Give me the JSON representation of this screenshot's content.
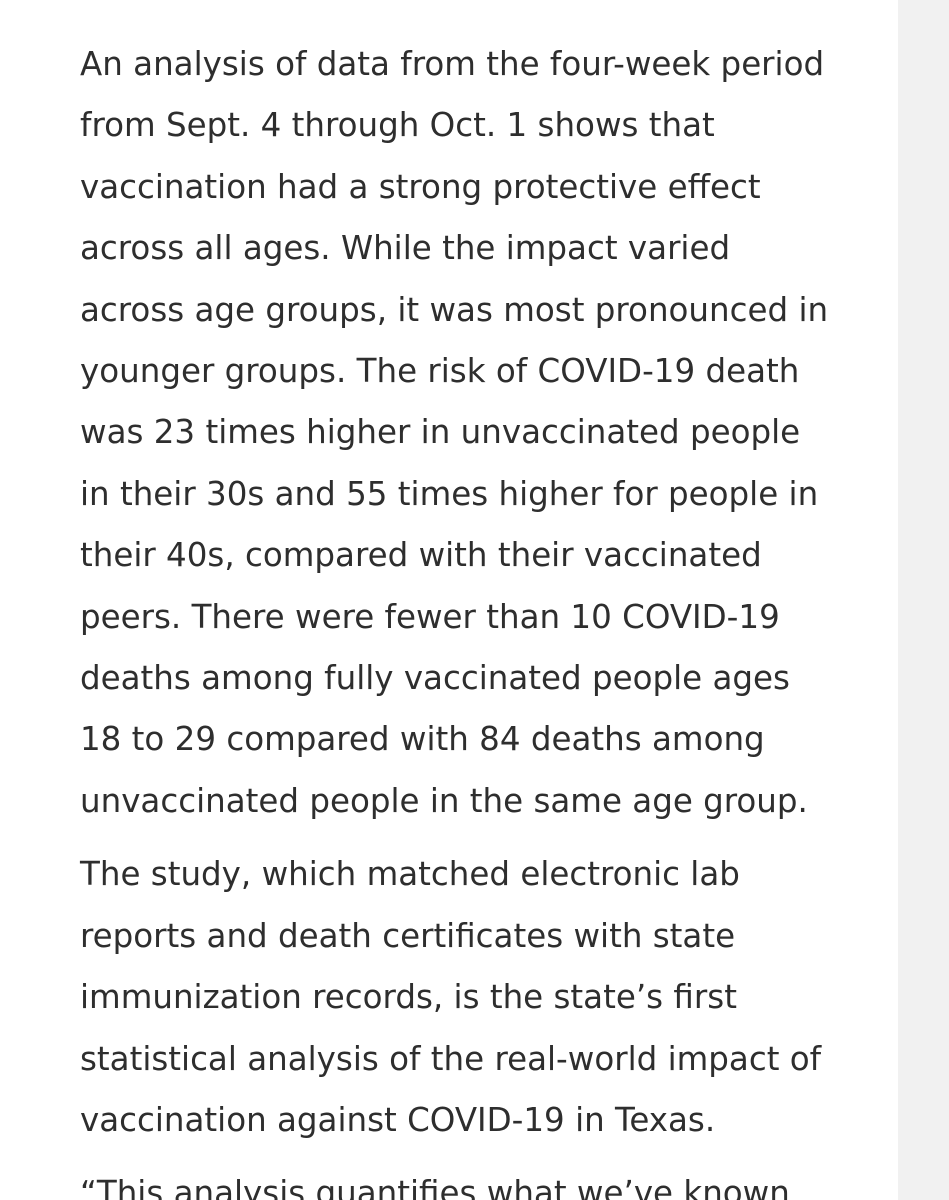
{
  "article": {
    "paragraphs": [
      {
        "lines": [
          "An analysis of data from the four-week period",
          "from Sept. 4 through Oct. 1 shows that",
          "vaccination had a strong protective effect",
          "across all ages. While the impact varied",
          "across age groups, it was most pronounced in",
          "younger groups. The risk of COVID-19 death",
          "was 23 times higher in unvaccinated people",
          "in their 30s and 55 times higher for people in",
          "their 40s, compared with their vaccinated",
          "peers. There were fewer than 10 COVID-19",
          "deaths among fully vaccinated people ages",
          "18 to 29 compared with 84 deaths among",
          "unvaccinated people in the same age group."
        ]
      },
      {
        "lines": [
          "The study, which matched electronic lab",
          "reports and death certificates with state",
          "immunization records, is the state’s first",
          "statistical analysis of the real-world impact of",
          "vaccination against COVID-19 in Texas."
        ]
      },
      {
        "lines": [
          "“This analysis quantifies what we’ve known"
        ]
      }
    ]
  }
}
